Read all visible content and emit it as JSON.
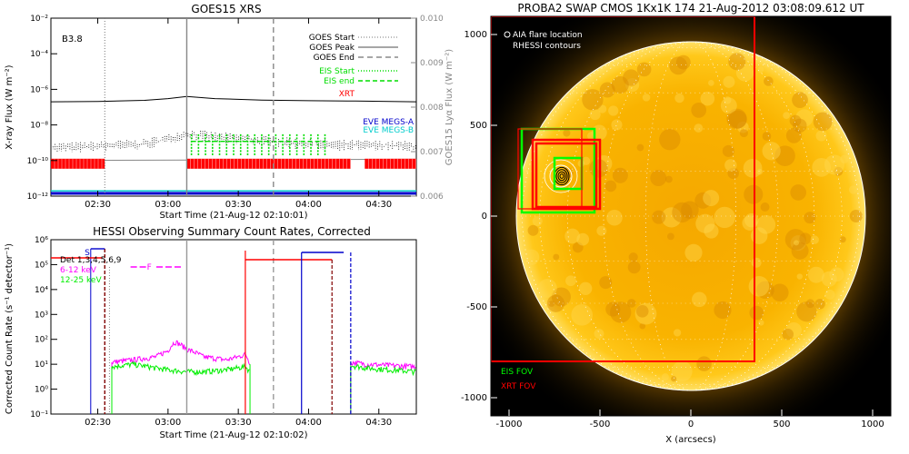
{
  "chart_data": [
    {
      "type": "line",
      "title": "GOES15 XRS",
      "xlabel": "Start Time (21-Aug-12 02:10:01)",
      "ylabel": "X-ray Flux (W m⁻²)",
      "y2label": "GOES15 Lyα Flux (W m⁻²)",
      "annotation": "B3.8",
      "y_log": true,
      "ylim": [
        1e-12,
        0.01
      ],
      "y2lim": [
        0.006,
        0.01
      ],
      "xlim": [
        "02:10",
        "04:46"
      ],
      "x_ticks": [
        "02:30",
        "03:00",
        "03:30",
        "04:00",
        "04:30"
      ],
      "y_ticks": [
        "10⁻¹²",
        "10⁻¹⁰",
        "10⁻⁸",
        "10⁻⁶",
        "10⁻⁴",
        "10⁻²"
      ],
      "y2_ticks": [
        "0.006",
        "0.007",
        "0.008",
        "0.009",
        "0.010"
      ],
      "legend": [
        "GOES Start",
        "GOES Peak",
        "GOES End",
        "EIS Start",
        "EIS end",
        "XRT"
      ],
      "legend2": [
        "EVE MEGS-A",
        "EVE MEGS-B"
      ],
      "markers": {
        "goes_start": "02:33",
        "goes_peak": "03:08",
        "goes_end": "03:45"
      },
      "series": [
        {
          "name": "",
          "x": [
            "02:10",
            "02:30",
            "02:50",
            "03:00",
            "03:08",
            "03:20",
            "03:40",
            "04:00",
            "04:20",
            "04:46"
          ],
          "values": [
            2e-07,
            2.1e-07,
            2.4e-07,
            3e-07,
            4e-07,
            3e-07,
            2.5e-07,
            2.3e-07,
            2.2e-07,
            2e-07
          ]
        },
        {
          "name": "",
          "x": [
            "02:10",
            "02:30",
            "02:50",
            "03:00",
            "03:08",
            "03:20",
            "03:40",
            "04:00",
            "04:20",
            "04:46"
          ],
          "values": [
            5e-10,
            6e-10,
            8e-10,
            1.5e-09,
            3e-09,
            2e-09,
            1.2e-09,
            8e-10,
            7e-10,
            6e-10
          ]
        }
      ],
      "xrt_intervals": [
        [
          "02:10",
          "02:33"
        ],
        [
          "03:08",
          "04:18"
        ],
        [
          "04:24",
          "04:46"
        ]
      ],
      "eis_start_times": [
        "03:10",
        "03:13",
        "03:16",
        "03:19",
        "03:22",
        "03:25",
        "03:28",
        "03:31",
        "03:34",
        "03:37",
        "03:40",
        "03:43",
        "03:46",
        "03:49",
        "03:52",
        "03:55",
        "03:58",
        "04:01",
        "04:04",
        "04:07"
      ],
      "colors": {
        "goes": "#000000",
        "lya": "#888888",
        "eis": "#00dd00",
        "xrt": "#ff0000",
        "eve_a": "#0000cc",
        "eve_b": "#00cccc",
        "ylabel2": "#888888"
      }
    },
    {
      "type": "line",
      "title": "HESSI Observing Summary Count Rates, Corrected",
      "xlabel": "Start Time (21-Aug-12 02:10:02)",
      "ylabel": "Corrected Count Rate (s⁻¹ detector⁻¹)",
      "y_log": true,
      "ylim": [
        0.1,
        1000000.0
      ],
      "xlim": [
        "02:10",
        "04:46"
      ],
      "x_ticks": [
        "02:30",
        "03:00",
        "03:30",
        "04:00",
        "04:30"
      ],
      "y_ticks": [
        "10⁻¹",
        "10⁰",
        "10¹",
        "10²",
        "10³",
        "10⁴",
        "10⁵",
        "10⁶"
      ],
      "legend": [
        "Det 1,3,4,5,6,9",
        "6-12 keV",
        "12-25 keV"
      ],
      "legend_markers": [
        "S",
        "F"
      ],
      "series": [
        {
          "name": "6-12 keV",
          "x": [
            "02:36",
            "02:45",
            "02:55",
            "03:00",
            "03:03",
            "03:08",
            "03:15",
            "03:25",
            "03:30",
            "03:33",
            "03:35"
          ],
          "values": [
            12,
            15,
            20,
            35,
            80,
            40,
            20,
            15,
            20,
            25,
            10
          ]
        },
        {
          "name": "12-25 keV",
          "x": [
            "02:36",
            "02:45",
            "02:55",
            "03:00",
            "03:08",
            "03:15",
            "03:25",
            "03:33",
            "03:35"
          ],
          "values": [
            8,
            10,
            7,
            6,
            5,
            5,
            6,
            8,
            5
          ]
        },
        {
          "name": "6-12 keV",
          "x": [
            "04:18",
            "04:25",
            "04:35",
            "04:46"
          ],
          "values": [
            12,
            10,
            9,
            8
          ]
        },
        {
          "name": "12-25 keV",
          "x": [
            "04:18",
            "04:25",
            "04:35",
            "04:46"
          ],
          "values": [
            9,
            7,
            6,
            5
          ]
        }
      ],
      "colors": {
        "low": "#ff00ff",
        "high": "#00ee00",
        "markers": "#0000cc",
        "events": "#ff0000"
      }
    },
    {
      "type": "heatmap",
      "title": "PROBA2 SWAP CMOS 1Kx1K 174 21-Aug-2012 03:08:09.612 UT",
      "xlabel": "X (arcsecs)",
      "ylabel": "",
      "xlim": [
        -1100,
        1100
      ],
      "ylim": [
        -1100,
        1100
      ],
      "x_ticks": [
        "-1000",
        "-500",
        "0",
        "500",
        "1000"
      ],
      "y_ticks": [
        "-1000",
        "-500",
        "0",
        "500",
        "1000"
      ],
      "legend": [
        "AIA flare location",
        "RHESSI contours"
      ],
      "fov_labels": [
        "EIS FOV",
        "XRT FOV"
      ],
      "xrt_fov": {
        "x": [
          -1100,
          350
        ],
        "y": [
          -800,
          1100
        ]
      },
      "eis_fov_boxes": [
        {
          "x": [
            -930,
            -530
          ],
          "y": [
            20,
            480
          ]
        },
        {
          "x": [
            -750,
            -600
          ],
          "y": [
            150,
            320
          ]
        }
      ],
      "xrt_boxes": [
        {
          "x": [
            -950,
            -600
          ],
          "y": [
            40,
            480
          ]
        },
        {
          "x": [
            -870,
            -500
          ],
          "y": [
            40,
            420
          ]
        },
        {
          "x": [
            -850,
            -520
          ],
          "y": [
            50,
            400
          ]
        }
      ],
      "flare_location": {
        "x": -715,
        "y": 220
      },
      "colors": {
        "sun": "#ffbb00",
        "background": "#000000",
        "xrt": "#ff0000",
        "eis": "#00ff00"
      }
    }
  ]
}
